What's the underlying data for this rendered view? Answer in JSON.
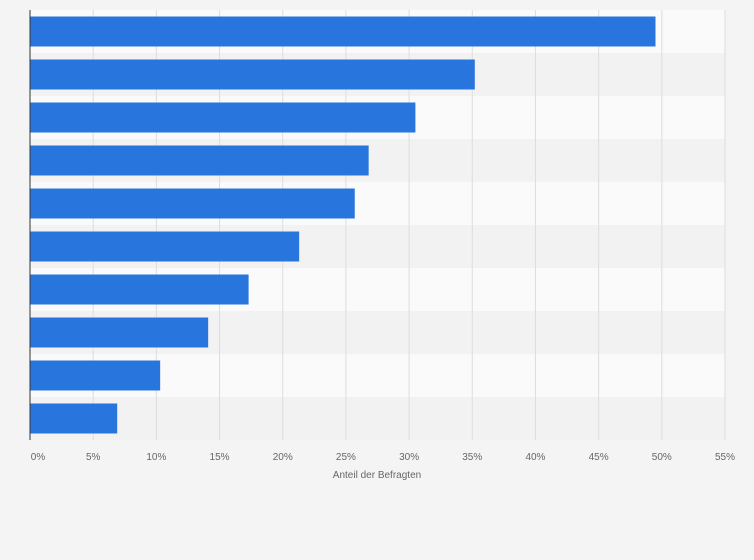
{
  "chart_data": {
    "type": "bar",
    "orientation": "horizontal",
    "categories": [
      "",
      "",
      "",
      "",
      "",
      "",
      "",
      "",
      "",
      ""
    ],
    "values": [
      49.5,
      35.2,
      30.5,
      26.8,
      25.7,
      21.3,
      17.3,
      14.1,
      10.3,
      6.9
    ],
    "xlabel": "Anteil der Befragten",
    "ylabel": "",
    "xlim": [
      0,
      55
    ],
    "x_ticks": [
      0,
      5,
      10,
      15,
      20,
      25,
      30,
      35,
      40,
      45,
      50,
      55
    ],
    "x_tick_labels": [
      "0%",
      "5%",
      "10%",
      "15%",
      "20%",
      "25%",
      "30%",
      "35%",
      "40%",
      "45%",
      "50%",
      "55%"
    ],
    "grid": true,
    "legend": "none",
    "colors": {
      "bar": "#2876dd",
      "band_light": "#fafafa",
      "band_dark": "#f2f2f2",
      "grid": "#dddddd",
      "axis": "#333333",
      "text": "#666666",
      "background": "#f4f4f4"
    }
  }
}
